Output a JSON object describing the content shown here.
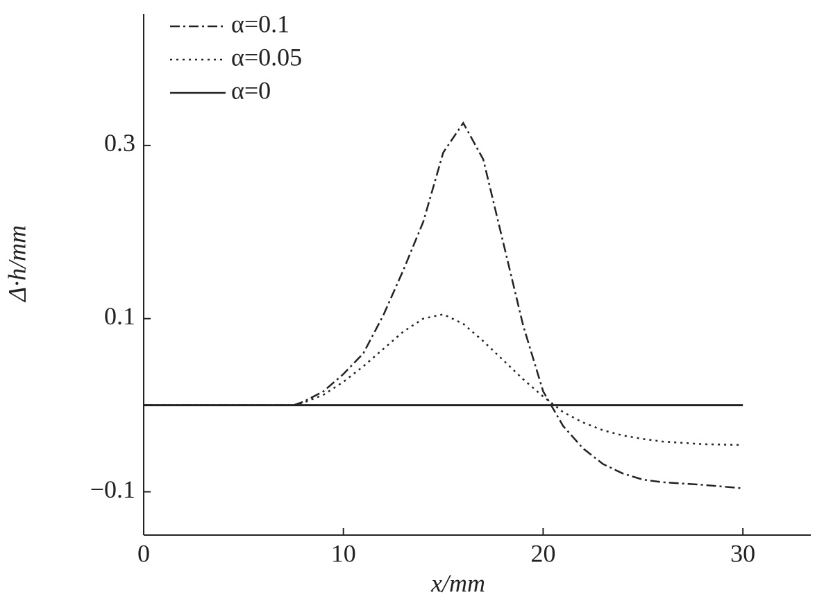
{
  "chart_data": {
    "type": "line",
    "x_label": "x/mm",
    "y_label": "Δ·h/mm",
    "x": [
      0,
      7.5,
      8,
      9,
      10,
      11,
      12,
      13,
      14,
      15,
      16,
      17,
      18,
      19,
      20,
      20.4,
      21,
      22,
      23,
      24,
      25,
      26,
      28,
      30
    ],
    "series": [
      {
        "name": "α=0.1",
        "color": "#222222",
        "dash": "dashdot",
        "values": [
          0,
          0,
          0.004,
          0.016,
          0.036,
          0.06,
          0.104,
          0.156,
          0.212,
          0.292,
          0.326,
          0.284,
          0.188,
          0.092,
          0.016,
          0,
          -0.024,
          -0.05,
          -0.068,
          -0.079,
          -0.086,
          -0.089,
          -0.092,
          -0.096
        ]
      },
      {
        "name": "α=0.05",
        "color": "#222222",
        "dash": "dotted",
        "values": [
          0,
          0,
          0.003,
          0.012,
          0.027,
          0.045,
          0.065,
          0.085,
          0.1,
          0.105,
          0.094,
          0.074,
          0.052,
          0.03,
          0.01,
          0.003,
          -0.008,
          -0.02,
          -0.029,
          -0.035,
          -0.039,
          -0.042,
          -0.045,
          -0.046
        ]
      },
      {
        "name": "α=0",
        "color": "#222222",
        "dash": "solid",
        "values": [
          0,
          0,
          0,
          0,
          0,
          0,
          0,
          0,
          0,
          0,
          0,
          0,
          0,
          0,
          0,
          0,
          0,
          0,
          0,
          0,
          0,
          0,
          0,
          0
        ]
      }
    ],
    "xlim": [
      0,
      33.4
    ],
    "ylim": [
      -0.15,
      0.452
    ],
    "xticks": [
      0,
      10,
      20,
      30
    ],
    "yticks": [
      0.3,
      0.1,
      {
        "value": -0.1,
        "label": "−0.1"
      }
    ],
    "grid": false,
    "legend": "upper left"
  }
}
